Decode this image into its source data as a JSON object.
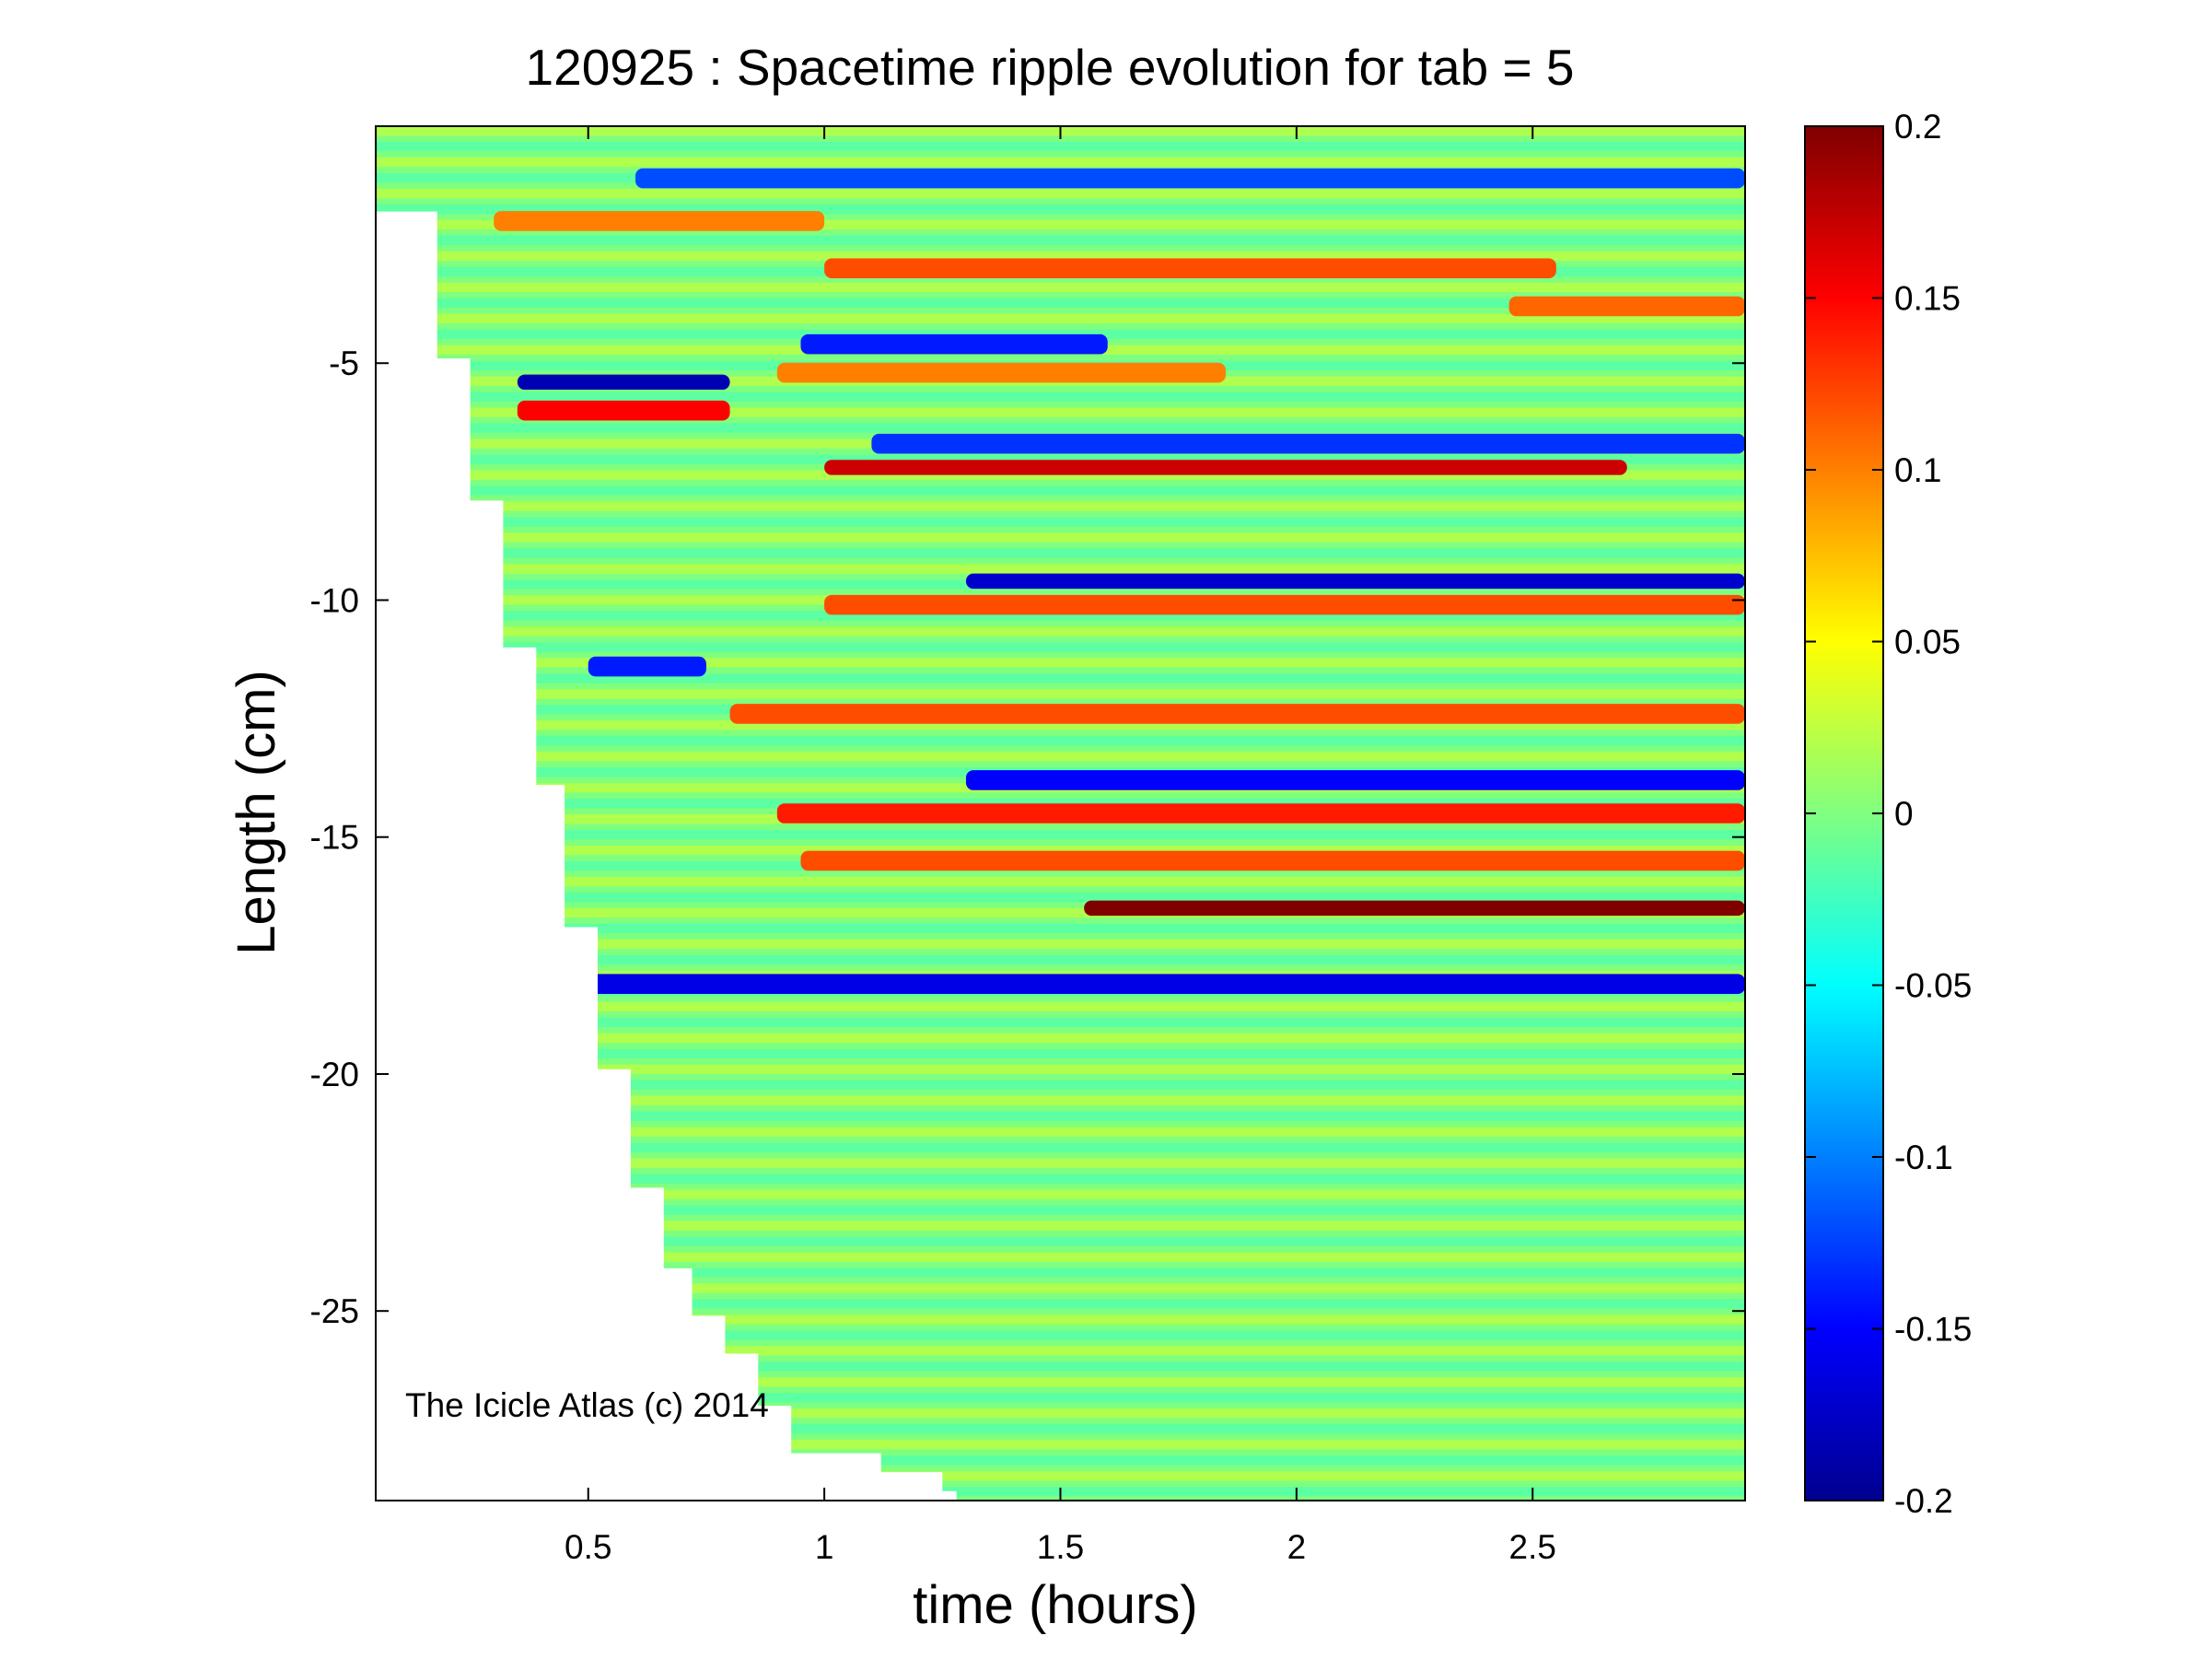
{
  "chart_data": {
    "type": "heatmap",
    "title": "120925 : Spacetime ripple evolution for tab = 5",
    "xlabel": "time (hours)",
    "ylabel": "Length (cm)",
    "xlim": [
      0.05,
      2.95
    ],
    "ylim": [
      -29,
      0
    ],
    "xticks": [
      0.5,
      1,
      1.5,
      2,
      2.5
    ],
    "xtick_labels": [
      "0.5",
      "1",
      "1.5",
      "2",
      "2.5"
    ],
    "yticks": [
      -5,
      -10,
      -15,
      -20,
      -25
    ],
    "ytick_labels": [
      "-5",
      "-10",
      "-15",
      "-20",
      "-25"
    ],
    "colorbar": {
      "colormap": "jet",
      "clim": [
        -0.2,
        0.2
      ],
      "ticks": [
        0.2,
        0.15,
        0.1,
        0.05,
        0,
        -0.05,
        -0.1,
        -0.15,
        -0.2
      ],
      "tick_labels": [
        "0.2",
        "0.15",
        "0.1",
        "0.05",
        "0",
        "-0.05",
        "-0.1",
        "-0.15",
        "-0.2"
      ]
    },
    "annotation": "The Icicle Atlas (c) 2014",
    "data_start_boundary": [
      {
        "t": 0.12,
        "length": -1.8
      },
      {
        "t": 0.18,
        "length": -4.9
      },
      {
        "t": 0.25,
        "length": -7.9
      },
      {
        "t": 0.32,
        "length": -11.0
      },
      {
        "t": 0.39,
        "length": -13.9
      },
      {
        "t": 0.45,
        "length": -16.9
      },
      {
        "t": 0.52,
        "length": -19.9
      },
      {
        "t": 0.59,
        "length": -22.4
      },
      {
        "t": 0.66,
        "length": -24.1
      },
      {
        "t": 0.72,
        "length": -25.1
      },
      {
        "t": 0.79,
        "length": -25.9
      },
      {
        "t": 0.86,
        "length": -27.0
      },
      {
        "t": 0.93,
        "length": -28.0
      },
      {
        "t": 1.12,
        "length": -28.4
      },
      {
        "t": 1.25,
        "length": -28.8
      },
      {
        "t": 1.28,
        "length": -29.0
      }
    ],
    "dominant_bands": [
      {
        "length": -1.1,
        "t_start": 0.6,
        "t_end": 2.95,
        "value": -0.12
      },
      {
        "length": -2.0,
        "t_start": 0.3,
        "t_end": 1.0,
        "value": 0.1
      },
      {
        "length": -3.0,
        "t_start": 1.0,
        "t_end": 2.55,
        "value": 0.12
      },
      {
        "length": -3.8,
        "t_start": 2.45,
        "t_end": 2.95,
        "value": 0.11
      },
      {
        "length": -4.6,
        "t_start": 0.95,
        "t_end": 1.6,
        "value": -0.14
      },
      {
        "length": -5.2,
        "t_start": 0.9,
        "t_end": 1.85,
        "value": 0.1
      },
      {
        "length": -5.4,
        "t_start": 0.35,
        "t_end": 0.8,
        "value": -0.18
      },
      {
        "length": -6.0,
        "t_start": 0.35,
        "t_end": 0.8,
        "value": 0.15
      },
      {
        "length": -6.7,
        "t_start": 1.1,
        "t_end": 2.95,
        "value": -0.13
      },
      {
        "length": -7.2,
        "t_start": 1.0,
        "t_end": 2.7,
        "value": 0.17
      },
      {
        "length": -9.6,
        "t_start": 1.3,
        "t_end": 2.95,
        "value": -0.17
      },
      {
        "length": -10.1,
        "t_start": 1.0,
        "t_end": 2.95,
        "value": 0.12
      },
      {
        "length": -11.4,
        "t_start": 0.5,
        "t_end": 0.75,
        "value": -0.14
      },
      {
        "length": -12.4,
        "t_start": 0.8,
        "t_end": 2.95,
        "value": 0.12
      },
      {
        "length": -13.8,
        "t_start": 1.3,
        "t_end": 2.95,
        "value": -0.15
      },
      {
        "length": -14.5,
        "t_start": 0.9,
        "t_end": 2.95,
        "value": 0.14
      },
      {
        "length": -15.5,
        "t_start": 0.95,
        "t_end": 2.95,
        "value": 0.12
      },
      {
        "length": -16.5,
        "t_start": 1.55,
        "t_end": 2.95,
        "value": 0.2
      },
      {
        "length": -18.1,
        "t_start": 0.5,
        "t_end": 2.95,
        "value": -0.16
      }
    ]
  }
}
